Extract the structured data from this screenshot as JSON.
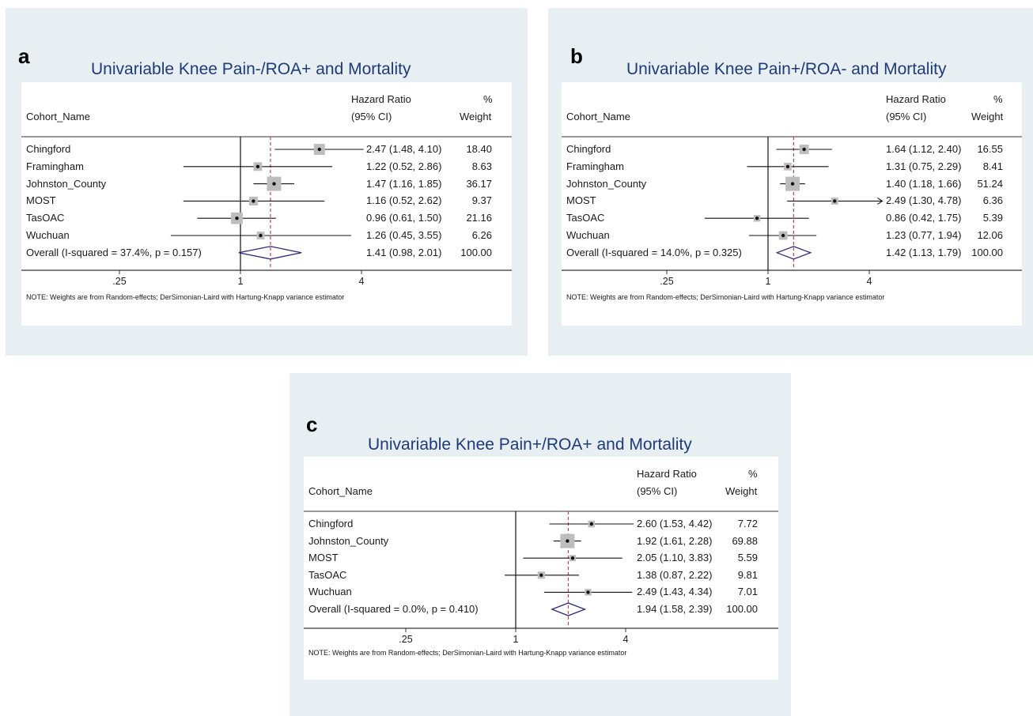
{
  "chart_data": [
    {
      "panel_letter": "a",
      "type": "forest",
      "title": "Univariable Knee Pain-/ROA+ and Mortality",
      "col_label": "Cohort_Name",
      "col_hr_line1": "Hazard Ratio",
      "col_hr_line2": "(95% CI)",
      "col_wt_line1": "%",
      "col_wt_line2": "Weight",
      "xscale": "log",
      "xlim": [
        0.08,
        12
      ],
      "ticks": [
        ".25",
        "1",
        "4"
      ],
      "tick_values": [
        0.25,
        1,
        4
      ],
      "rows": [
        {
          "name": "Chingford",
          "hr": 2.47,
          "lo": 1.48,
          "hi": 4.1,
          "est": "2.47 (1.48, 4.10)",
          "weight": "18.40"
        },
        {
          "name": "Framingham",
          "hr": 1.22,
          "lo": 0.52,
          "hi": 2.86,
          "est": "1.22 (0.52, 2.86)",
          "weight": "8.63"
        },
        {
          "name": "Johnston_County",
          "hr": 1.47,
          "lo": 1.16,
          "hi": 1.85,
          "est": "1.47 (1.16, 1.85)",
          "weight": "36.17"
        },
        {
          "name": "MOST",
          "hr": 1.16,
          "lo": 0.52,
          "hi": 2.62,
          "est": "1.16 (0.52, 2.62)",
          "weight": "9.37"
        },
        {
          "name": "TasOAC",
          "hr": 0.96,
          "lo": 0.61,
          "hi": 1.5,
          "est": "0.96 (0.61, 1.50)",
          "weight": "21.16"
        },
        {
          "name": "Wuchuan",
          "hr": 1.26,
          "lo": 0.45,
          "hi": 3.55,
          "est": "1.26 (0.45, 3.55)",
          "weight": "6.26"
        }
      ],
      "overall": {
        "label": "Overall  (I-squared = 37.4%, p = 0.157)",
        "hr": 1.41,
        "lo": 0.98,
        "hi": 2.01,
        "est": "1.41 (0.98, 2.01)",
        "weight": "100.00"
      },
      "note": "NOTE: Weights are from Random-effects; DerSimonian-Laird with Hartung-Knapp variance estimator"
    },
    {
      "panel_letter": "b",
      "type": "forest",
      "title": "Univariable Knee Pain+/ROA- and Mortality",
      "col_label": "Cohort_Name",
      "col_hr_line1": "Hazard Ratio",
      "col_hr_line2": "(95% CI)",
      "col_wt_line1": "%",
      "col_wt_line2": "Weight",
      "xscale": "log",
      "xlim": [
        0.11,
        4.5
      ],
      "ticks": [
        ".25",
        "1",
        "4"
      ],
      "tick_values": [
        0.25,
        1,
        4
      ],
      "rows": [
        {
          "name": "Chingford",
          "hr": 1.64,
          "lo": 1.12,
          "hi": 2.4,
          "est": "1.64 (1.12, 2.40)",
          "weight": "16.55"
        },
        {
          "name": "Framingham",
          "hr": 1.31,
          "lo": 0.75,
          "hi": 2.29,
          "est": "1.31 (0.75, 2.29)",
          "weight": "8.41"
        },
        {
          "name": "Johnston_County",
          "hr": 1.4,
          "lo": 1.18,
          "hi": 1.66,
          "est": "1.40 (1.18, 1.66)",
          "weight": "51.24"
        },
        {
          "name": "MOST",
          "hr": 2.49,
          "lo": 1.3,
          "hi": 4.78,
          "est": "2.49 (1.30, 4.78)",
          "weight": "6.36",
          "arrow": true
        },
        {
          "name": "TasOAC",
          "hr": 0.86,
          "lo": 0.42,
          "hi": 1.75,
          "est": "0.86 (0.42, 1.75)",
          "weight": "5.39"
        },
        {
          "name": "Wuchuan",
          "hr": 1.23,
          "lo": 0.77,
          "hi": 1.94,
          "est": "1.23 (0.77, 1.94)",
          "weight": "12.06"
        }
      ],
      "overall": {
        "label": "Overall  (I-squared = 14.0%, p = 0.325)",
        "hr": 1.42,
        "lo": 1.13,
        "hi": 1.79,
        "est": "1.42 (1.13, 1.79)",
        "weight": "100.00"
      },
      "note": "NOTE: Weights are from Random-effects; DerSimonian-Laird with Hartung-Knapp variance estimator"
    },
    {
      "panel_letter": "c",
      "type": "forest",
      "title": "Univariable Knee Pain+/ROA+ and Mortality",
      "col_label": "Cohort_Name",
      "col_hr_line1": "Hazard Ratio",
      "col_hr_line2": "(95% CI)",
      "col_wt_line1": "%",
      "col_wt_line2": "Weight",
      "xscale": "log",
      "xlim": [
        0.075,
        4.5
      ],
      "ticks": [
        ".25",
        "1",
        "4"
      ],
      "tick_values": [
        0.25,
        1,
        4
      ],
      "rows": [
        {
          "name": "Chingford",
          "hr": 2.6,
          "lo": 1.53,
          "hi": 4.42,
          "est": "2.60 (1.53, 4.42)",
          "weight": "7.72"
        },
        {
          "name": "Johnston_County",
          "hr": 1.92,
          "lo": 1.61,
          "hi": 2.28,
          "est": "1.92 (1.61, 2.28)",
          "weight": "69.88"
        },
        {
          "name": "MOST",
          "hr": 2.05,
          "lo": 1.1,
          "hi": 3.83,
          "est": "2.05 (1.10, 3.83)",
          "weight": "5.59"
        },
        {
          "name": "TasOAC",
          "hr": 1.38,
          "lo": 0.87,
          "hi": 2.22,
          "est": "1.38 (0.87, 2.22)",
          "weight": "9.81"
        },
        {
          "name": "Wuchuan",
          "hr": 2.49,
          "lo": 1.43,
          "hi": 4.34,
          "est": "2.49 (1.43, 4.34)",
          "weight": "7.01"
        }
      ],
      "overall": {
        "label": "Overall  (I-squared = 0.0%, p = 0.410)",
        "hr": 1.94,
        "lo": 1.58,
        "hi": 2.39,
        "est": "1.94 (1.58, 2.39)",
        "weight": "100.00"
      },
      "note": "NOTE: Weights are from Random-effects; DerSimonian-Laird with Hartung-Knapp variance estimator"
    }
  ],
  "colors": {
    "title": "#1f3a78",
    "diamond": "#2b2b7a",
    "overall_line": "#b04a5a",
    "box": "#bdbdbd",
    "panel_bg": "#e8eff3"
  }
}
